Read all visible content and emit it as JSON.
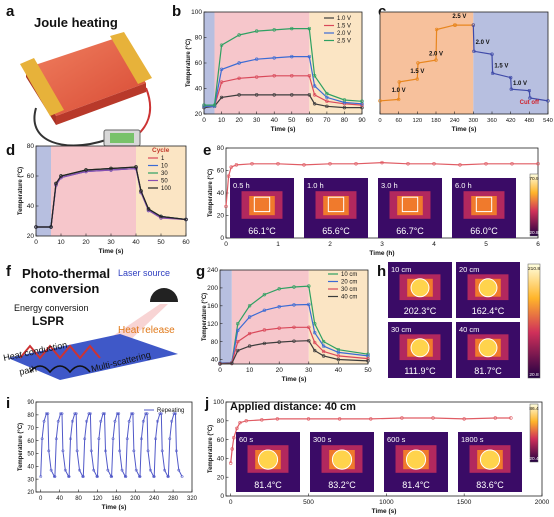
{
  "panel_letters": {
    "a": "a",
    "b": "b",
    "c": "c",
    "d": "d",
    "e": "e",
    "f": "f",
    "g": "g",
    "h": "h",
    "i": "i",
    "j": "j"
  },
  "panel_a": {
    "title": "Joule heating"
  },
  "panel_f": {
    "title_line1": "Photo-thermal",
    "title_line2": "conversion",
    "laser": "Laser source",
    "energy": "Energy conversion",
    "lspr": "LSPR",
    "release": "Heat release",
    "conduction_line1": "Heat conduction",
    "conduction_line2": "path",
    "scattering": "Multi-scattering"
  },
  "panel_h": {
    "cells": [
      {
        "distance": "10 cm",
        "temp": "202.3°C"
      },
      {
        "distance": "20 cm",
        "temp": "162.4°C"
      },
      {
        "distance": "30 cm",
        "temp": "111.9°C"
      },
      {
        "distance": "40 cm",
        "temp": "81.7°C"
      }
    ],
    "scale_max": "210.8",
    "scale_min": "20.8"
  },
  "panel_e_insets": [
    {
      "time": "0.5 h",
      "temp": "66.1°C"
    },
    {
      "time": "1.0 h",
      "temp": "65.6°C"
    },
    {
      "time": "3.0 h",
      "temp": "66.7°C"
    },
    {
      "time": "6.0 h",
      "temp": "66.0°C"
    }
  ],
  "panel_e_scale": {
    "max": "70.9",
    "min": "20.8"
  },
  "panel_j_insets": [
    {
      "time": "60 s",
      "temp": "81.4°C"
    },
    {
      "time": "300 s",
      "temp": "83.2°C"
    },
    {
      "time": "600 s",
      "temp": "81.4°C"
    },
    {
      "time": "1800 s",
      "temp": "83.6°C"
    }
  ],
  "panel_j_title": "Applied distance: 40 cm",
  "panel_j_scale": {
    "max": "86.4",
    "min": "20.4"
  },
  "colors": {
    "blue_shade": "#b7bfe0",
    "pink_shade": "#f6c6cb",
    "yellow_shade": "#fbe5c4",
    "orange_shade": "#f7c19c",
    "trace_red": "#e05c64",
    "trace_blue": "#5058c8"
  },
  "chart_data": [
    {
      "id": "b",
      "type": "line",
      "xlabel": "Time (s)",
      "ylabel": "Temperature (°C)",
      "xlim": [
        0,
        90
      ],
      "ylim": [
        20,
        100
      ],
      "xticks": [
        0,
        10,
        20,
        30,
        40,
        50,
        60,
        70,
        80,
        90
      ],
      "yticks": [
        20,
        40,
        60,
        80,
        100
      ],
      "regions": [
        {
          "from": 0,
          "to": 6,
          "color": "blue"
        },
        {
          "from": 6,
          "to": 60,
          "color": "pink"
        },
        {
          "from": 60,
          "to": 90,
          "color": "yellow"
        }
      ],
      "series": [
        {
          "name": "1.0 V",
          "color": "#3c3c3c",
          "x": [
            0,
            6,
            10,
            20,
            30,
            40,
            50,
            60,
            63,
            70,
            80,
            90
          ],
          "y": [
            25,
            26,
            33,
            35,
            35,
            35,
            35,
            35,
            28,
            26,
            25,
            25
          ]
        },
        {
          "name": "1.5 V",
          "color": "#d9495a",
          "x": [
            0,
            6,
            10,
            20,
            30,
            40,
            50,
            60,
            63,
            70,
            80,
            90
          ],
          "y": [
            26,
            26,
            45,
            48,
            49,
            50,
            50,
            50,
            35,
            30,
            28,
            27
          ]
        },
        {
          "name": "2.0 V",
          "color": "#3b6bd4",
          "x": [
            0,
            6,
            10,
            20,
            30,
            40,
            50,
            60,
            63,
            70,
            80,
            90
          ],
          "y": [
            26,
            26,
            55,
            60,
            63,
            64,
            65,
            65,
            42,
            33,
            29,
            28
          ]
        },
        {
          "name": "2.5 V",
          "color": "#2ea062",
          "x": [
            0,
            6,
            10,
            20,
            30,
            40,
            50,
            60,
            63,
            70,
            80,
            90
          ],
          "y": [
            27,
            27,
            74,
            82,
            85,
            86,
            87,
            87,
            50,
            36,
            31,
            30
          ]
        }
      ]
    },
    {
      "id": "c",
      "type": "line",
      "xlabel": "Time (s)",
      "ylabel": "",
      "xlim": [
        0,
        540
      ],
      "ylim": [
        25,
        95
      ],
      "xticks": [
        0,
        60,
        120,
        180,
        240,
        300,
        360,
        420,
        480,
        540
      ],
      "yticks": [],
      "regions": [
        {
          "from": 0,
          "to": 300,
          "color": "orange"
        },
        {
          "from": 300,
          "to": 540,
          "color": "blue"
        }
      ],
      "labels": [
        {
          "text": "1.0 V",
          "x": 60,
          "y": 40
        },
        {
          "text": "1.5 V",
          "x": 120,
          "y": 53
        },
        {
          "text": "2.0 V",
          "x": 180,
          "y": 65
        },
        {
          "text": "2.5 V",
          "x": 255,
          "y": 91
        },
        {
          "text": "2.0 V",
          "x": 330,
          "y": 73
        },
        {
          "text": "1.5 V",
          "x": 390,
          "y": 57
        },
        {
          "text": "1.0 V",
          "x": 450,
          "y": 45
        },
        {
          "text": "Cut off",
          "x": 480,
          "y": 32
        }
      ],
      "series": [
        {
          "name": "",
          "color": "#e8861e",
          "x": [
            0,
            60,
            62,
            120,
            122,
            180,
            182,
            240,
            242,
            300
          ],
          "y": [
            34,
            35,
            47,
            49,
            60,
            62,
            83,
            86,
            86,
            86
          ]
        },
        {
          "name": "",
          "color": "#3f4aa8",
          "x": [
            300,
            302,
            360,
            362,
            420,
            422,
            480,
            482,
            540
          ],
          "y": [
            86,
            68,
            66,
            53,
            50,
            42,
            41,
            36,
            34
          ]
        }
      ]
    },
    {
      "id": "d",
      "type": "line",
      "title": "Cycle",
      "xlabel": "Time (s)",
      "ylabel": "Temperature (°C)",
      "xlim": [
        0,
        60
      ],
      "ylim": [
        20,
        80
      ],
      "xticks": [
        0,
        10,
        20,
        30,
        40,
        50,
        60
      ],
      "yticks": [
        20,
        40,
        60,
        80
      ],
      "regions": [
        {
          "from": 0,
          "to": 6,
          "color": "blue"
        },
        {
          "from": 6,
          "to": 40,
          "color": "pink"
        },
        {
          "from": 40,
          "to": 60,
          "color": "yellow"
        }
      ],
      "series": [
        {
          "name": "1",
          "color": "#d9495a",
          "x": [
            0,
            6,
            8,
            10,
            20,
            30,
            40,
            42,
            45,
            50,
            60
          ],
          "y": [
            26,
            26,
            55,
            60,
            64,
            65,
            66,
            50,
            38,
            33,
            31
          ]
        },
        {
          "name": "10",
          "color": "#3b6bd4",
          "x": [
            0,
            6,
            8,
            10,
            20,
            30,
            40,
            42,
            45,
            50,
            60
          ],
          "y": [
            26,
            26,
            54,
            59,
            63,
            64,
            65,
            49,
            37,
            33,
            31
          ]
        },
        {
          "name": "30",
          "color": "#2ea062",
          "x": [
            0,
            6,
            8,
            10,
            20,
            30,
            40,
            42,
            45,
            50,
            60
          ],
          "y": [
            26,
            26,
            55,
            60,
            64,
            65,
            66,
            50,
            38,
            33,
            31
          ]
        },
        {
          "name": "50",
          "color": "#8a4fb0",
          "x": [
            0,
            6,
            8,
            10,
            20,
            30,
            40,
            42,
            45,
            50,
            60
          ],
          "y": [
            26,
            26,
            54,
            59,
            63,
            64,
            65,
            49,
            37,
            32,
            31
          ]
        },
        {
          "name": "100",
          "color": "#222222",
          "x": [
            0,
            6,
            8,
            10,
            20,
            30,
            40,
            42,
            45,
            50,
            60
          ],
          "y": [
            26,
            26,
            55,
            60,
            64,
            65,
            66,
            50,
            38,
            33,
            31
          ]
        }
      ]
    },
    {
      "id": "e",
      "type": "line",
      "xlabel": "Time (h)",
      "ylabel": "Temperature (°C)",
      "xlim": [
        0,
        6
      ],
      "ylim": [
        0,
        80
      ],
      "xticks": [
        0,
        1,
        2,
        3,
        4,
        5,
        6
      ],
      "yticks": [
        0,
        20,
        40,
        60,
        80
      ],
      "series": [
        {
          "name": "",
          "color": "#e05c64",
          "x": [
            0,
            0.05,
            0.1,
            0.2,
            0.5,
            1,
            1.5,
            2,
            2.5,
            3,
            3.5,
            4,
            4.5,
            5,
            5.5,
            6
          ],
          "y": [
            28,
            55,
            63,
            65,
            66,
            66,
            65,
            66,
            66,
            67,
            66,
            66,
            65,
            66,
            66,
            66
          ]
        }
      ]
    },
    {
      "id": "g",
      "type": "line",
      "xlabel": "Time (s)",
      "ylabel": "Temperature (°C)",
      "xlim": [
        0,
        50
      ],
      "ylim": [
        30,
        240
      ],
      "xticks": [
        0,
        10,
        20,
        30,
        40,
        50
      ],
      "yticks": [
        40,
        80,
        120,
        160,
        200,
        240
      ],
      "regions": [
        {
          "from": 0,
          "to": 4,
          "color": "blue"
        },
        {
          "from": 4,
          "to": 30,
          "color": "pink"
        },
        {
          "from": 30,
          "to": 50,
          "color": "yellow"
        }
      ],
      "series": [
        {
          "name": "10 cm",
          "color": "#2ea062",
          "x": [
            0,
            4,
            6,
            10,
            15,
            20,
            25,
            30,
            32,
            35,
            40,
            50
          ],
          "y": [
            32,
            33,
            120,
            160,
            185,
            198,
            202,
            204,
            120,
            80,
            62,
            52
          ]
        },
        {
          "name": "20 cm",
          "color": "#3b6bd4",
          "x": [
            0,
            4,
            6,
            10,
            15,
            20,
            25,
            30,
            32,
            35,
            40,
            50
          ],
          "y": [
            32,
            33,
            105,
            135,
            150,
            158,
            162,
            163,
            100,
            70,
            56,
            48
          ]
        },
        {
          "name": "30 cm",
          "color": "#d9495a",
          "x": [
            0,
            4,
            6,
            10,
            15,
            20,
            25,
            30,
            32,
            35,
            40,
            50
          ],
          "y": [
            31,
            32,
            80,
            98,
            106,
            110,
            112,
            112,
            78,
            58,
            48,
            42
          ]
        },
        {
          "name": "40 cm",
          "color": "#3c3c3c",
          "x": [
            0,
            4,
            6,
            10,
            15,
            20,
            25,
            30,
            32,
            35,
            40,
            50
          ],
          "y": [
            30,
            31,
            60,
            70,
            76,
            79,
            81,
            82,
            60,
            48,
            40,
            37
          ]
        }
      ]
    },
    {
      "id": "i",
      "type": "line",
      "xlabel": "Time (s)",
      "ylabel": "Temperature (°C)",
      "xlim": [
        -10,
        320
      ],
      "ylim": [
        20,
        90
      ],
      "xticks": [
        0,
        40,
        80,
        120,
        160,
        200,
        240,
        280,
        320
      ],
      "yticks": [
        20,
        30,
        40,
        50,
        60,
        70,
        80,
        90
      ],
      "series": [
        {
          "name": "Repeating",
          "color": "#5058c8",
          "cycles": {
            "period": 30,
            "count": 10,
            "start": 0,
            "low": 32,
            "high": 81
          }
        }
      ]
    },
    {
      "id": "j",
      "type": "line",
      "xlabel": "Time (s)",
      "ylabel": "Temperature (°C)",
      "xlim": [
        -30,
        2000
      ],
      "ylim": [
        0,
        100
      ],
      "xticks": [
        0,
        500,
        1000,
        1500,
        2000
      ],
      "yticks": [
        0,
        20,
        40,
        60,
        80,
        100
      ],
      "series": [
        {
          "name": "",
          "color": "#e05c64",
          "x": [
            0,
            10,
            20,
            40,
            60,
            100,
            200,
            300,
            500,
            700,
            900,
            1100,
            1300,
            1500,
            1700,
            1800
          ],
          "y": [
            35,
            50,
            62,
            72,
            78,
            80,
            81,
            82,
            82,
            82,
            82,
            83,
            83,
            82,
            83,
            83
          ]
        }
      ]
    }
  ]
}
